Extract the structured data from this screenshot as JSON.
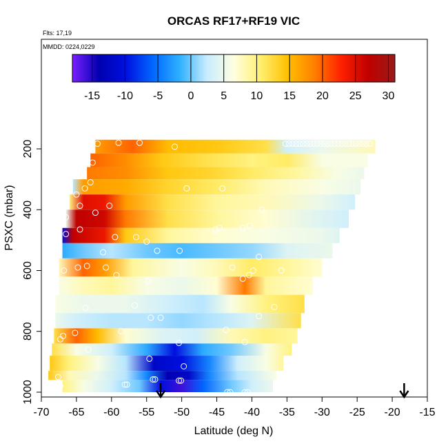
{
  "chart_data": {
    "type": "heatmap",
    "title": "ORCAS RF17+RF19 VIC",
    "flights_label": "Flts: 17,19",
    "dates_label": "MMDD: 0224,0229",
    "xlabel": "Latitude (deg N)",
    "ylabel": "PSXC (mbar)",
    "xlim": [
      -70,
      -15
    ],
    "ylim": [
      1000,
      100
    ],
    "x_ticks": [
      -70,
      -65,
      -60,
      -55,
      -50,
      -45,
      -40,
      -35,
      -30,
      -25,
      -20,
      -15
    ],
    "y_ticks": [
      200,
      400,
      600,
      800,
      1000
    ],
    "colorbar": {
      "range": [
        -18,
        31
      ],
      "ticks": [
        -15,
        -10,
        -5,
        0,
        5,
        10,
        15,
        20,
        25,
        30
      ],
      "colors": [
        "#7a1fff",
        "#0000b0",
        "#0010e0",
        "#0068ff",
        "#30b0ff",
        "#c8ecff",
        "#ffffe0",
        "#fff070",
        "#ffc000",
        "#ff8000",
        "#ff2000",
        "#c00000",
        "#9a1a1a"
      ]
    },
    "arrows_at_latitude": [
      -53,
      -18.3
    ],
    "bands": [
      {
        "p_top": 170,
        "p_bot": 215,
        "lat_start": -62.3,
        "lat_end": -22.4,
        "values": [
          [
            -62.3,
            17
          ],
          [
            -57,
            20
          ],
          [
            -52,
            15
          ],
          [
            -45,
            14
          ],
          [
            -38,
            12
          ],
          [
            -35,
            3
          ],
          [
            -30,
            5
          ],
          [
            -22.4,
            8
          ]
        ]
      },
      {
        "p_top": 215,
        "p_bot": 260,
        "lat_start": -63,
        "lat_end": -23.5,
        "values": [
          [
            -63,
            20
          ],
          [
            -58,
            18
          ],
          [
            -53,
            14
          ],
          [
            -47,
            12
          ],
          [
            -40,
            10
          ],
          [
            -35,
            11
          ],
          [
            -30,
            6
          ],
          [
            -23.5,
            6
          ]
        ]
      },
      {
        "p_top": 260,
        "p_bot": 300,
        "lat_start": -63.5,
        "lat_end": -24,
        "values": [
          [
            -63.5,
            19
          ],
          [
            -58,
            18
          ],
          [
            -52,
            14
          ],
          [
            -46,
            13
          ],
          [
            -40,
            11
          ],
          [
            -34,
            9
          ],
          [
            -28,
            6
          ],
          [
            -24,
            5
          ]
        ]
      },
      {
        "p_top": 300,
        "p_bot": 350,
        "lat_start": -65.5,
        "lat_end": -24.5,
        "values": [
          [
            -65.5,
            2
          ],
          [
            -64,
            17
          ],
          [
            -58,
            16
          ],
          [
            -52,
            13
          ],
          [
            -45,
            11
          ],
          [
            -38,
            8
          ],
          [
            -30,
            6
          ],
          [
            -24.5,
            5
          ]
        ]
      },
      {
        "p_top": 350,
        "p_bot": 400,
        "lat_start": -66,
        "lat_end": -25.3,
        "values": [
          [
            -66,
            10
          ],
          [
            -64,
            25
          ],
          [
            -61,
            24
          ],
          [
            -58,
            17
          ],
          [
            -52,
            12
          ],
          [
            -45,
            9
          ],
          [
            -38,
            8
          ],
          [
            -30,
            5
          ],
          [
            -25.3,
            3
          ]
        ]
      },
      {
        "p_top": 400,
        "p_bot": 460,
        "lat_start": -66.5,
        "lat_end": -26.2,
        "values": [
          [
            -66.5,
            5
          ],
          [
            -65,
            27
          ],
          [
            -61,
            26
          ],
          [
            -58,
            19
          ],
          [
            -52,
            12
          ],
          [
            -45,
            9
          ],
          [
            -38,
            7
          ],
          [
            -30,
            4
          ],
          [
            -26.2,
            3
          ]
        ]
      },
      {
        "p_top": 460,
        "p_bot": 510,
        "lat_start": -67,
        "lat_end": -27.5,
        "values": [
          [
            -67,
            -10
          ],
          [
            -65.5,
            27
          ],
          [
            -61,
            24
          ],
          [
            -58,
            14
          ],
          [
            -52,
            9
          ],
          [
            -45,
            7
          ],
          [
            -38,
            6
          ],
          [
            -30,
            5
          ],
          [
            -27.5,
            4
          ]
        ]
      },
      {
        "p_top": 510,
        "p_bot": 560,
        "lat_start": -67,
        "lat_end": -28.5,
        "values": [
          [
            -67,
            -2
          ],
          [
            -64,
            0
          ],
          [
            -60,
            2
          ],
          [
            -55,
            0
          ],
          [
            -50,
            -1
          ],
          [
            -45,
            0
          ],
          [
            -40,
            1
          ],
          [
            -35,
            4
          ],
          [
            -28.5,
            5
          ]
        ]
      },
      {
        "p_top": 560,
        "p_bot": 620,
        "lat_start": -67.5,
        "lat_end": -30,
        "values": [
          [
            -67.5,
            8
          ],
          [
            -64,
            20
          ],
          [
            -61,
            17
          ],
          [
            -57,
            9
          ],
          [
            -50,
            6
          ],
          [
            -45,
            8
          ],
          [
            -40,
            11
          ],
          [
            -35,
            9
          ],
          [
            -30,
            7
          ]
        ]
      },
      {
        "p_top": 620,
        "p_bot": 680,
        "lat_start": -67.5,
        "lat_end": -31.3,
        "values": [
          [
            -67.5,
            6
          ],
          [
            -64,
            8
          ],
          [
            -60,
            9
          ],
          [
            -55,
            6
          ],
          [
            -50,
            5
          ],
          [
            -45,
            7
          ],
          [
            -41,
            19
          ],
          [
            -38,
            9
          ],
          [
            -31.3,
            7
          ]
        ]
      },
      {
        "p_top": 680,
        "p_bot": 740,
        "lat_start": -68,
        "lat_end": -32.5,
        "values": [
          [
            -68,
            6
          ],
          [
            -64,
            5
          ],
          [
            -58,
            5
          ],
          [
            -52,
            3
          ],
          [
            -47,
            2
          ],
          [
            -43,
            6
          ],
          [
            -38,
            10
          ],
          [
            -32.5,
            12
          ]
        ]
      },
      {
        "p_top": 740,
        "p_bot": 790,
        "lat_start": -68,
        "lat_end": -33,
        "values": [
          [
            -68,
            5
          ],
          [
            -65,
            3
          ],
          [
            -60,
            2
          ],
          [
            -55,
            2
          ],
          [
            -50,
            1
          ],
          [
            -45,
            2
          ],
          [
            -40,
            4
          ],
          [
            -33,
            12
          ]
        ]
      },
      {
        "p_top": 790,
        "p_bot": 840,
        "lat_start": -68.2,
        "lat_end": -33.5,
        "values": [
          [
            -68.2,
            12
          ],
          [
            -65,
            20
          ],
          [
            -62,
            15
          ],
          [
            -58,
            7
          ],
          [
            -53,
            4
          ],
          [
            -48,
            3
          ],
          [
            -43,
            8
          ],
          [
            -38,
            10
          ],
          [
            -33.5,
            9
          ]
        ]
      },
      {
        "p_top": 840,
        "p_bot": 880,
        "lat_start": -68.5,
        "lat_end": -34.3,
        "values": [
          [
            -68.5,
            12
          ],
          [
            -65,
            6
          ],
          [
            -60,
            3
          ],
          [
            -55,
            -2
          ],
          [
            -51,
            -10
          ],
          [
            -47,
            -2
          ],
          [
            -43,
            0
          ],
          [
            -38,
            6
          ],
          [
            -34.3,
            10
          ]
        ]
      },
      {
        "p_top": 880,
        "p_bot": 930,
        "lat_start": -68.8,
        "lat_end": -35.5,
        "values": [
          [
            -68.8,
            14
          ],
          [
            -66,
            10
          ],
          [
            -62,
            6
          ],
          [
            -58,
            2
          ],
          [
            -54,
            -12
          ],
          [
            -50,
            -10
          ],
          [
            -46,
            -4
          ],
          [
            -42,
            3
          ],
          [
            -38,
            6
          ],
          [
            -35.5,
            9
          ]
        ]
      },
      {
        "p_top": 930,
        "p_bot": 960,
        "lat_start": -69,
        "lat_end": -36.5,
        "values": [
          [
            -69,
            14
          ],
          [
            -66,
            8
          ],
          [
            -62,
            5
          ],
          [
            -58,
            2
          ],
          [
            -55,
            -4
          ],
          [
            -52,
            -14
          ],
          [
            -49,
            -12
          ],
          [
            -46,
            -4
          ],
          [
            -42,
            2
          ],
          [
            -38,
            5
          ],
          [
            -36.5,
            6
          ]
        ]
      },
      {
        "p_top": 960,
        "p_bot": 1000,
        "lat_start": -67,
        "lat_end": -37,
        "values": [
          [
            -67,
            10
          ],
          [
            -64,
            6
          ],
          [
            -60,
            3
          ],
          [
            -56,
            0
          ],
          [
            -53,
            -10
          ],
          [
            -50,
            -16
          ],
          [
            -47,
            -6
          ],
          [
            -43,
            0
          ],
          [
            -40,
            3
          ],
          [
            -37,
            5
          ]
        ]
      }
    ],
    "circles": [
      [
        -62,
        183
      ],
      [
        -59,
        180
      ],
      [
        -56,
        180
      ],
      [
        -51,
        193
      ],
      [
        -35.2,
        183
      ],
      [
        -34.7,
        183
      ],
      [
        -34.2,
        183
      ],
      [
        -33.7,
        183
      ],
      [
        -33.2,
        183
      ],
      [
        -32.7,
        183
      ],
      [
        -32.2,
        183
      ],
      [
        -31.7,
        183
      ],
      [
        -31.2,
        183
      ],
      [
        -30.7,
        183
      ],
      [
        -30.2,
        183
      ],
      [
        -29.7,
        183
      ],
      [
        -29.2,
        183
      ],
      [
        -28.7,
        183
      ],
      [
        -28.2,
        183
      ],
      [
        -27.7,
        183
      ],
      [
        -27.2,
        183
      ],
      [
        -26.7,
        183
      ],
      [
        -26.2,
        183
      ],
      [
        -25.7,
        183
      ],
      [
        -25.2,
        183
      ],
      [
        -24.7,
        183
      ],
      [
        -24.2,
        183
      ],
      [
        -23.7,
        183
      ],
      [
        -23.2,
        183
      ],
      [
        -62.7,
        245
      ],
      [
        -63.8,
        330
      ],
      [
        -63,
        310
      ],
      [
        -65,
        350
      ],
      [
        -49.3,
        330
      ],
      [
        -44.2,
        330
      ],
      [
        -64.5,
        387
      ],
      [
        -60.3,
        387
      ],
      [
        -38.6,
        400
      ],
      [
        -66.5,
        425
      ],
      [
        -62.3,
        410
      ],
      [
        -41.3,
        460
      ],
      [
        -44.6,
        460
      ],
      [
        -45.2,
        465
      ],
      [
        -40.3,
        452
      ],
      [
        -64.5,
        465
      ],
      [
        -59.5,
        490
      ],
      [
        -56.5,
        490
      ],
      [
        -55,
        505
      ],
      [
        -66.5,
        480
      ],
      [
        -53.5,
        535
      ],
      [
        -50.3,
        535
      ],
      [
        -39,
        555
      ],
      [
        -61.2,
        540
      ],
      [
        -64.8,
        590
      ],
      [
        -63.5,
        585
      ],
      [
        -66.8,
        600
      ],
      [
        -60.8,
        590
      ],
      [
        -42.8,
        590
      ],
      [
        -39.8,
        600
      ],
      [
        -35.8,
        600
      ],
      [
        -40.4,
        615
      ],
      [
        -41.3,
        627
      ],
      [
        -59.3,
        615
      ],
      [
        -54.8,
        635
      ],
      [
        -56.7,
        715
      ],
      [
        -63.7,
        723
      ],
      [
        -36.8,
        720
      ],
      [
        -54.4,
        755
      ],
      [
        -53,
        755
      ],
      [
        -39,
        750
      ],
      [
        -58.6,
        800
      ],
      [
        -65.2,
        805
      ],
      [
        -43.7,
        795
      ],
      [
        -66.9,
        815
      ],
      [
        -67.3,
        826
      ],
      [
        -41,
        835
      ],
      [
        -63.3,
        860
      ],
      [
        -50.4,
        838
      ],
      [
        -54.6,
        890
      ],
      [
        -49.7,
        915
      ],
      [
        -67.6,
        950
      ],
      [
        -57.8,
        975
      ],
      [
        -58.1,
        975
      ],
      [
        -53.8,
        958
      ],
      [
        -54.1,
        958
      ],
      [
        -50.4,
        962
      ],
      [
        -50.1,
        962
      ],
      [
        -43.5,
        1000
      ],
      [
        -43.1,
        1000
      ],
      [
        -67.3,
        980
      ],
      [
        -41,
        1000
      ],
      [
        -40.6,
        1000
      ],
      [
        -35.5,
        1000
      ]
    ]
  }
}
